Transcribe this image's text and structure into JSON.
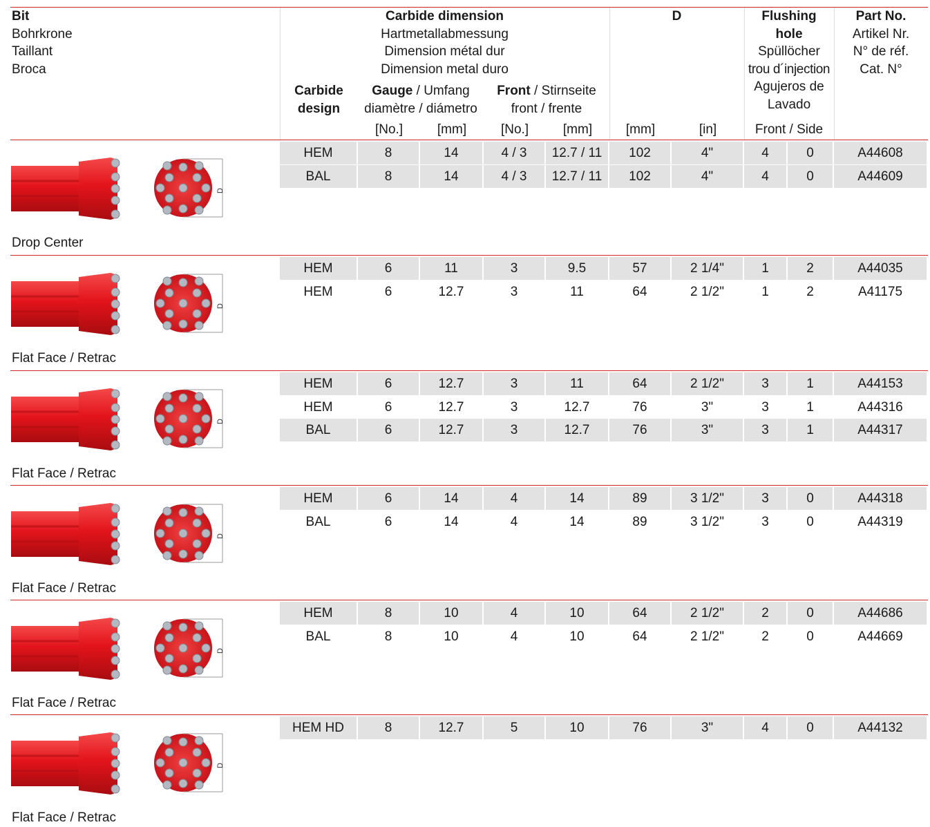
{
  "header": {
    "bit": {
      "title": "Bit",
      "lines": [
        "Bohrkrone",
        "Taillant",
        "Broca"
      ]
    },
    "carbide_dimension": {
      "title": "Carbide dimension",
      "lines": [
        "Hartmetallabmessung",
        "Dimension métal dur",
        "Dimension metal duro"
      ]
    },
    "carbide_design": "Carbide design",
    "gauge": {
      "title": "Gauge",
      "rest": " / Umfang",
      "line2": "diamètre / diámetro"
    },
    "front": {
      "title": "Front",
      "rest": " / Stirnseite",
      "line2": "front / frente"
    },
    "d": "D",
    "flushing": {
      "title": "Flushing hole",
      "lines": [
        "Spüllöcher",
        "trou d´injection",
        "Agujeros de Lavado"
      ]
    },
    "part_no": {
      "title": "Part No.",
      "lines": [
        "Artikel Nr.",
        "N° de réf.",
        "Cat. N°"
      ]
    },
    "units": [
      "[No.]",
      "[mm]",
      "[No.]",
      "[mm]",
      "[mm]",
      "[in]"
    ],
    "flushing_units": "Front / Side",
    "dimension_label": "D"
  },
  "groups": [
    {
      "name": "Drop Center",
      "rows": [
        [
          "HEM",
          "8",
          "14",
          "4 / 3",
          "12.7 / 11",
          "102",
          "4\"",
          "4",
          "0",
          "A44608"
        ],
        [
          "BAL",
          "8",
          "14",
          "4 / 3",
          "12.7 / 11",
          "102",
          "4\"",
          "4",
          "0",
          "A44609"
        ]
      ]
    },
    {
      "name": "Flat Face / Retrac",
      "rows": [
        [
          "HEM",
          "6",
          "11",
          "3",
          "9.5",
          "57",
          "2 1/4\"",
          "1",
          "2",
          "A44035"
        ],
        [
          "HEM",
          "6",
          "12.7",
          "3",
          "11",
          "64",
          "2 1/2\"",
          "1",
          "2",
          "A41175"
        ]
      ]
    },
    {
      "name": "Flat Face / Retrac",
      "rows": [
        [
          "HEM",
          "6",
          "12.7",
          "3",
          "11",
          "64",
          "2 1/2\"",
          "3",
          "1",
          "A44153"
        ],
        [
          "HEM",
          "6",
          "12.7",
          "3",
          "12.7",
          "76",
          "3\"",
          "3",
          "1",
          "A44316"
        ],
        [
          "BAL",
          "6",
          "12.7",
          "3",
          "12.7",
          "76",
          "3\"",
          "3",
          "1",
          "A44317"
        ]
      ]
    },
    {
      "name": "Flat Face / Retrac",
      "rows": [
        [
          "HEM",
          "6",
          "14",
          "4",
          "14",
          "89",
          "3 1/2\"",
          "3",
          "0",
          "A44318"
        ],
        [
          "BAL",
          "6",
          "14",
          "4",
          "14",
          "89",
          "3 1/2\"",
          "3",
          "0",
          "A44319"
        ]
      ]
    },
    {
      "name": "Flat Face / Retrac",
      "rows": [
        [
          "HEM",
          "8",
          "10",
          "4",
          "10",
          "64",
          "2 1/2\"",
          "2",
          "0",
          "A44686"
        ],
        [
          "BAL",
          "8",
          "10",
          "4",
          "10",
          "64",
          "2 1/2\"",
          "2",
          "0",
          "A44669"
        ]
      ]
    },
    {
      "name": "Flat Face / Retrac",
      "rows": [
        [
          "HEM HD",
          "8",
          "12.7",
          "5",
          "10",
          "76",
          "3\"",
          "4",
          "0",
          "A44132"
        ]
      ]
    }
  ]
}
